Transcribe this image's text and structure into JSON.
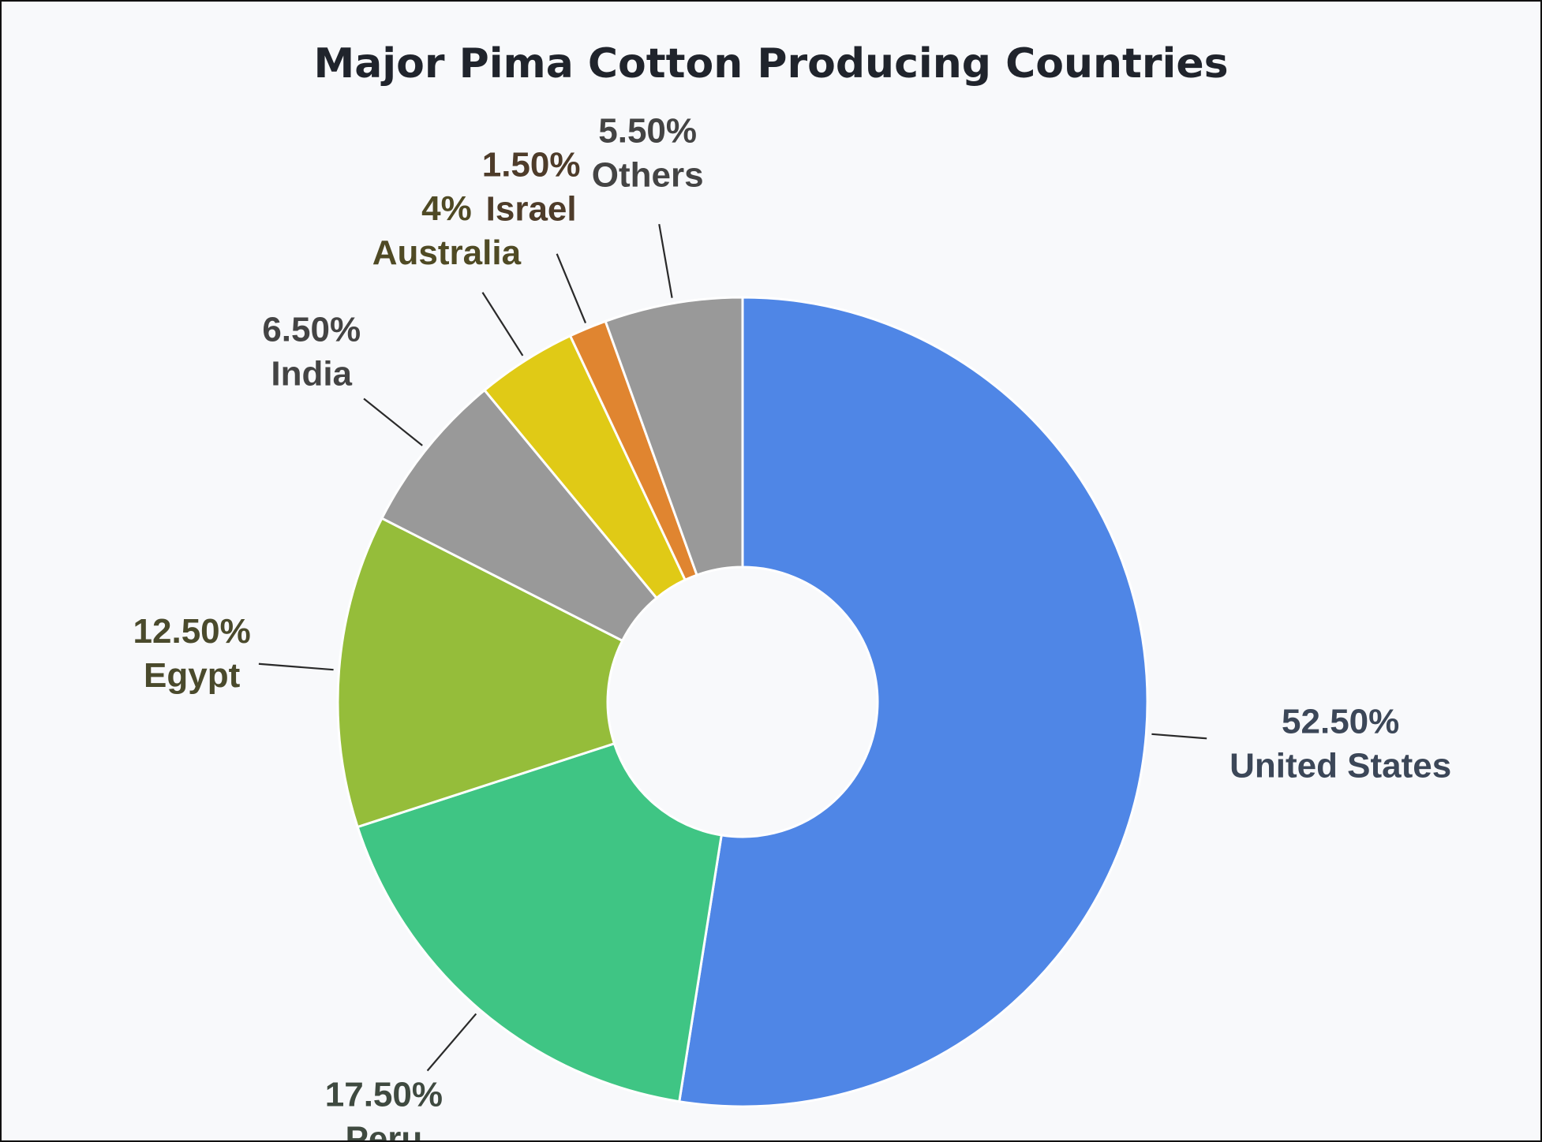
{
  "chart_data": {
    "type": "pie",
    "title": "Major Pima Cotton Producing Countries",
    "slices": [
      {
        "label": "United States",
        "value": 52.5,
        "value_label": "52.50%",
        "color": "#4f86e6",
        "label_color": "#3c4758"
      },
      {
        "label": "Peru",
        "value": 17.5,
        "value_label": "17.50%",
        "color": "#3fc584",
        "label_color": "#3f4a40"
      },
      {
        "label": "Egypt",
        "value": 12.5,
        "value_label": "12.50%",
        "color": "#95bd3a",
        "label_color": "#4a4a2c"
      },
      {
        "label": "India",
        "value": 6.5,
        "value_label": "6.50%",
        "color": "#999999",
        "label_color": "#444444"
      },
      {
        "label": "Australia",
        "value": 4,
        "value_label": "4%",
        "color": "#e0ca16",
        "label_color": "#4f4a24"
      },
      {
        "label": "Israel",
        "value": 1.5,
        "value_label": "1.50%",
        "color": "#e08530",
        "label_color": "#4e3c2a"
      },
      {
        "label": "Others",
        "value": 5.5,
        "value_label": "5.50%",
        "color": "#999999",
        "label_color": "#444444"
      }
    ],
    "donut_hole": true,
    "legend": "none",
    "labels": "outside-with-leader-lines"
  }
}
